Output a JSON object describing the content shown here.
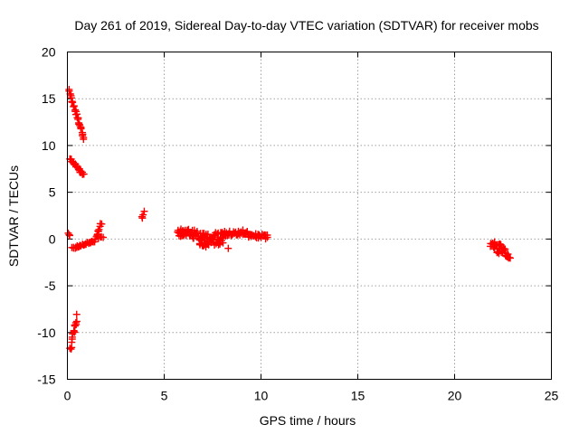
{
  "chart_data": {
    "type": "scatter",
    "title": "Day 261 of 2019, Sidereal Day-to-day VTEC variation (SDTVAR) for receiver mobs",
    "xlabel": "GPS time / hours",
    "ylabel": "SDTVAR / TECUs",
    "xlim": [
      0,
      25
    ],
    "ylim": [
      -15,
      20
    ],
    "xticks": [
      0,
      5,
      10,
      15,
      20,
      25
    ],
    "yticks": [
      -15,
      -10,
      -5,
      0,
      5,
      10,
      15,
      20
    ],
    "grid": true,
    "marker": "+",
    "color": "#ff0000",
    "series": [
      {
        "name": "SDTVAR",
        "segments": [
          {
            "x": [
              0.08,
              0.85
            ],
            "y": [
              15.8,
              10.8
            ],
            "n": 32,
            "jitter": 0.25
          },
          {
            "x": [
              0.12,
              0.85
            ],
            "y": [
              8.6,
              6.8
            ],
            "n": 22,
            "jitter": 0.15
          },
          {
            "x": [
              0.05,
              0.12
            ],
            "y": [
              0.7,
              0.4
            ],
            "n": 3,
            "jitter": 0.1
          },
          {
            "x": [
              0.25,
              1.4
            ],
            "y": [
              -1.0,
              -0.2
            ],
            "n": 26,
            "jitter": 0.1
          },
          {
            "x": [
              1.45,
              1.75
            ],
            "y": [
              -0.1,
              1.7
            ],
            "n": 10,
            "jitter": 0.2
          },
          {
            "x": [
              1.6,
              1.85
            ],
            "y": [
              0.1,
              0.2
            ],
            "n": 4,
            "jitter": 0.1
          },
          {
            "x": [
              0.15,
              0.5
            ],
            "y": [
              -11.8,
              -8.3
            ],
            "n": 16,
            "jitter": 0.3
          },
          {
            "x": [
              3.85,
              3.95
            ],
            "y": [
              2.2,
              2.9
            ],
            "n": 4,
            "jitter": 0.2
          },
          {
            "x": [
              5.7,
              6.8
            ],
            "y": [
              0.6,
              0.5
            ],
            "n": 40,
            "jitter": 0.5
          },
          {
            "x": [
              6.8,
              8.1
            ],
            "y": [
              0.0,
              0.0
            ],
            "n": 60,
            "jitter": 0.7
          },
          {
            "x": [
              7.0,
              7.2
            ],
            "y": [
              -0.8,
              -0.7
            ],
            "n": 4,
            "jitter": 0.2
          },
          {
            "x": [
              8.1,
              9.3
            ],
            "y": [
              0.6,
              0.7
            ],
            "n": 35,
            "jitter": 0.3
          },
          {
            "x": [
              8.3,
              8.35
            ],
            "y": [
              -1.0,
              -1.0
            ],
            "n": 1,
            "jitter": 0.0
          },
          {
            "x": [
              9.3,
              10.35
            ],
            "y": [
              0.4,
              0.2
            ],
            "n": 25,
            "jitter": 0.25
          },
          {
            "x": [
              21.85,
              22.3
            ],
            "y": [
              -0.3,
              -1.2
            ],
            "n": 16,
            "jitter": 0.5
          },
          {
            "x": [
              22.3,
              22.85
            ],
            "y": [
              -0.9,
              -1.6
            ],
            "n": 22,
            "jitter": 0.5
          }
        ]
      }
    ]
  }
}
